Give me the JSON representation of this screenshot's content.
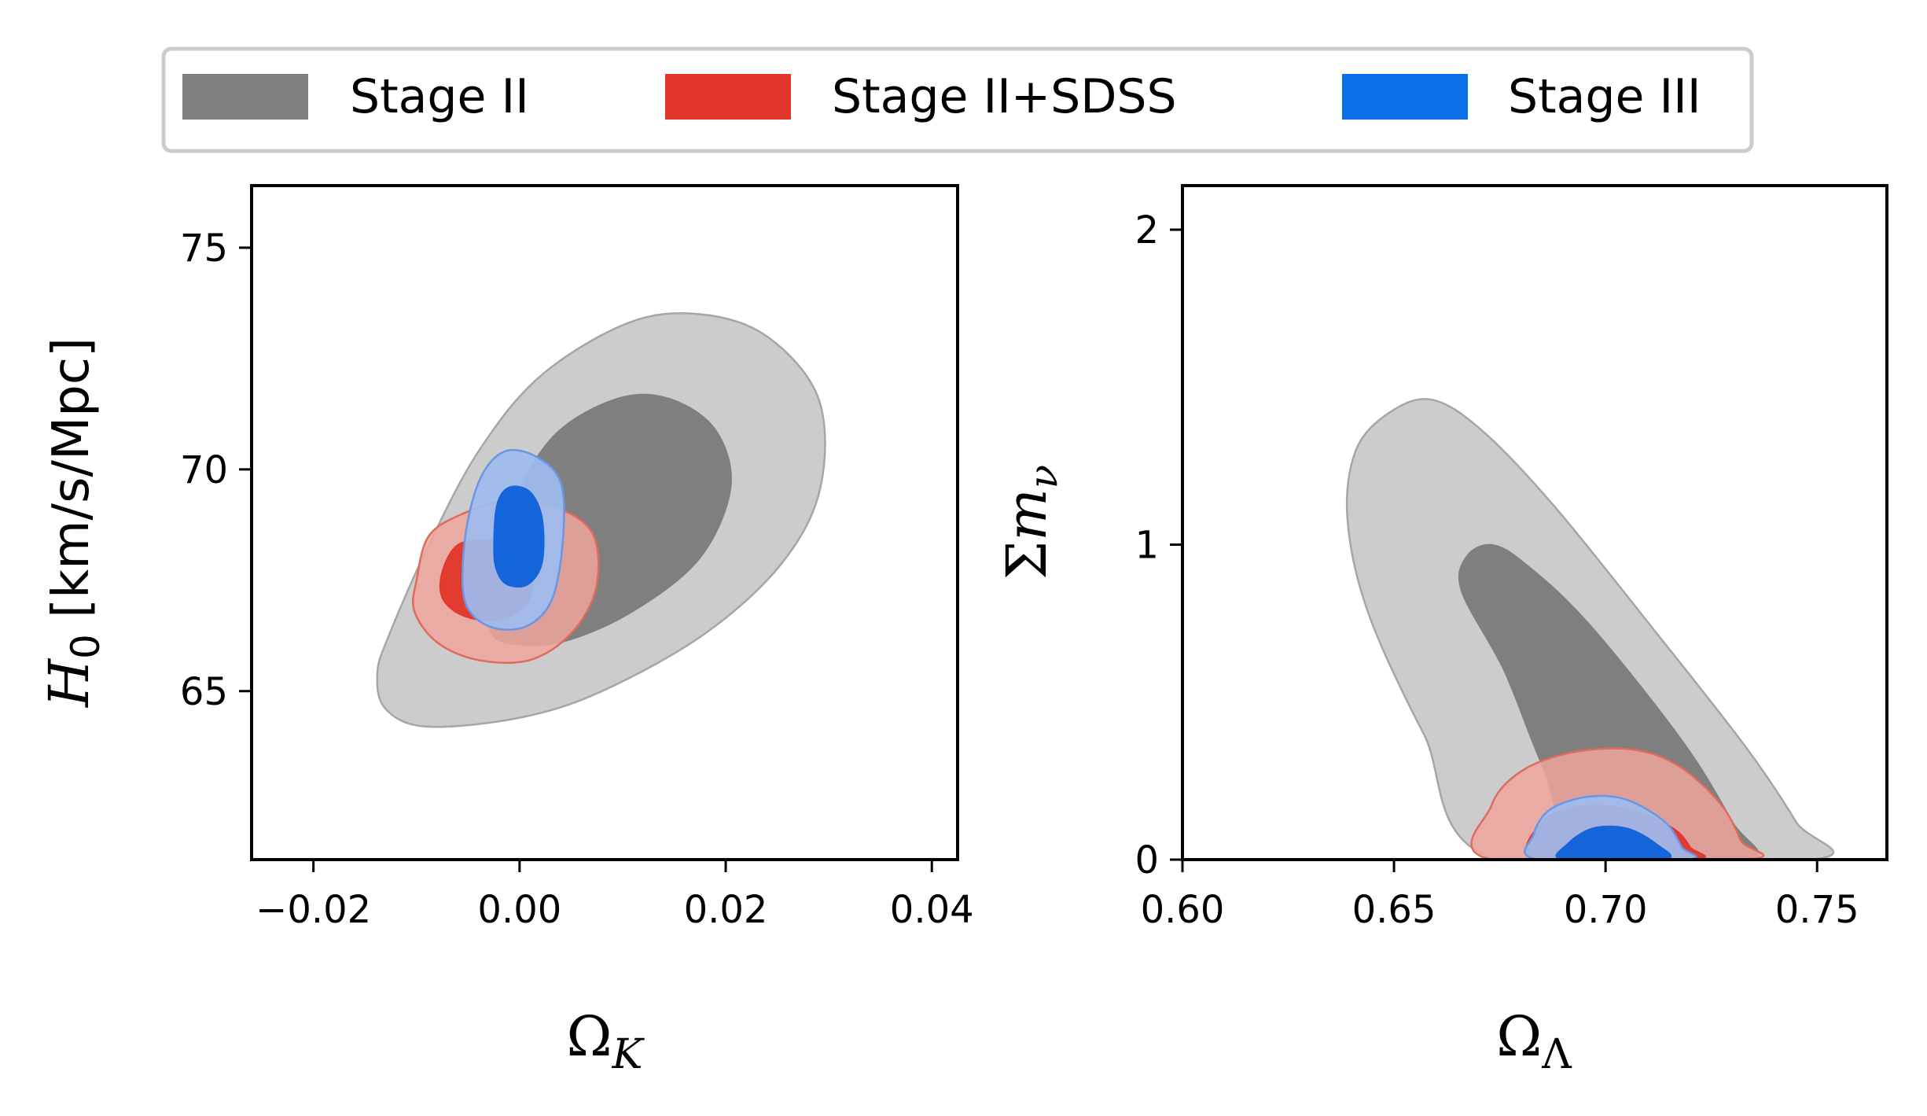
{
  "legend": {
    "entries": [
      {
        "label": "Stage II",
        "color": "#7f7f7f"
      },
      {
        "label": "Stage II+SDSS",
        "color": "#e2362b"
      },
      {
        "label": "Stage III",
        "color": "#0a6ee8"
      }
    ],
    "placement": "top-center"
  },
  "chart_data": [
    {
      "type": "contour",
      "xlabel": "Ω_K",
      "ylabel": "H_0 [km/s/Mpc]",
      "xlim": [
        -0.026,
        0.0425
      ],
      "ylim": [
        61.2,
        76.4
      ],
      "xticks": [
        -0.02,
        0.0,
        0.02,
        0.04
      ],
      "xtick_labels": [
        "−0.02",
        "0.00",
        "0.02",
        "0.04"
      ],
      "yticks": [
        65,
        70,
        75
      ],
      "ytick_labels": [
        "65",
        "70",
        "75"
      ],
      "series": [
        {
          "name": "Stage II",
          "contours": [
            {
              "level": "outer",
              "points": [
                [
                  -0.0126,
                  66.3
                ],
                [
                  -0.0088,
                  68.3
                ],
                [
                  -0.004,
                  70.4
                ],
                [
                  0.002,
                  72.1
                ],
                [
                  0.0105,
                  73.3
                ],
                [
                  0.0175,
                  73.5
                ],
                [
                  0.024,
                  73.0
                ],
                [
                  0.029,
                  71.6
                ],
                [
                  0.0292,
                  69.6
                ],
                [
                  0.0255,
                  67.9
                ],
                [
                  0.018,
                  66.3
                ],
                [
                  0.008,
                  65.0
                ],
                [
                  0.0,
                  64.4
                ],
                [
                  -0.009,
                  64.2
                ],
                [
                  -0.013,
                  64.6
                ],
                [
                  -0.0138,
                  65.4
                ]
              ]
            },
            {
              "level": "inner",
              "points": [
                [
                  -0.003,
                  67.3
                ],
                [
                  -0.0005,
                  69.3
                ],
                [
                  0.0035,
                  70.8
                ],
                [
                  0.0095,
                  71.6
                ],
                [
                  0.0145,
                  71.6
                ],
                [
                  0.019,
                  70.9
                ],
                [
                  0.0205,
                  69.6
                ],
                [
                  0.0175,
                  68.0
                ],
                [
                  0.011,
                  66.8
                ],
                [
                  0.004,
                  66.1
                ],
                [
                  -0.0015,
                  66.1
                ],
                [
                  -0.003,
                  66.5
                ]
              ]
            }
          ]
        },
        {
          "name": "Stage II+SDSS",
          "contours": [
            {
              "level": "outer",
              "points": [
                [
                  -0.01,
                  67.5
                ],
                [
                  -0.0088,
                  68.5
                ],
                [
                  -0.0055,
                  69.0
                ],
                [
                  -0.001,
                  69.3
                ],
                [
                  0.004,
                  69.1
                ],
                [
                  0.0072,
                  68.5
                ],
                [
                  0.0074,
                  67.3
                ],
                [
                  0.005,
                  66.3
                ],
                [
                  0.001,
                  65.7
                ],
                [
                  -0.004,
                  65.7
                ],
                [
                  -0.008,
                  66.1
                ],
                [
                  -0.0102,
                  66.8
                ]
              ]
            },
            {
              "level": "inner",
              "points": [
                [
                  -0.0075,
                  67.7
                ],
                [
                  -0.006,
                  68.3
                ],
                [
                  -0.003,
                  68.4
                ],
                [
                  0.0,
                  68.3
                ],
                [
                  0.0012,
                  67.7
                ],
                [
                  0.0008,
                  67.0
                ],
                [
                  -0.002,
                  66.6
                ],
                [
                  -0.0055,
                  66.7
                ],
                [
                  -0.0075,
                  67.1
                ]
              ]
            }
          ]
        },
        {
          "name": "Stage III",
          "contours": [
            {
              "level": "outer",
              "points": [
                [
                  -0.0055,
                  67.3
                ],
                [
                  -0.0052,
                  68.6
                ],
                [
                  -0.0038,
                  69.8
                ],
                [
                  -0.0015,
                  70.4
                ],
                [
                  0.0015,
                  70.3
                ],
                [
                  0.004,
                  69.7
                ],
                [
                  0.0042,
                  68.4
                ],
                [
                  0.0032,
                  67.1
                ],
                [
                  0.001,
                  66.5
                ],
                [
                  -0.002,
                  66.4
                ],
                [
                  -0.0045,
                  66.7
                ]
              ]
            },
            {
              "level": "inner",
              "points": [
                [
                  -0.0025,
                  68.2
                ],
                [
                  -0.0022,
                  69.2
                ],
                [
                  -0.001,
                  69.6
                ],
                [
                  0.001,
                  69.5
                ],
                [
                  0.0022,
                  68.9
                ],
                [
                  0.0022,
                  67.9
                ],
                [
                  0.0008,
                  67.4
                ],
                [
                  -0.0012,
                  67.4
                ],
                [
                  -0.0022,
                  67.7
                ]
              ]
            }
          ]
        }
      ]
    },
    {
      "type": "contour",
      "xlabel": "Ω_Λ",
      "ylabel": "Σm_ν",
      "xlim": [
        0.6,
        0.7665
      ],
      "ylim": [
        0,
        2.14
      ],
      "xticks": [
        0.6,
        0.65,
        0.7,
        0.75
      ],
      "xtick_labels": [
        "0.60",
        "0.65",
        "0.70",
        "0.75"
      ],
      "yticks": [
        0,
        1,
        2
      ],
      "ytick_labels": [
        "0",
        "1",
        "2"
      ],
      "series": [
        {
          "name": "Stage II",
          "contours": [
            {
              "level": "outer",
              "points": [
                [
                  0.674,
                  0.0
                ],
                [
                  0.657,
                  0.4
                ],
                [
                  0.644,
                  0.78
                ],
                [
                  0.639,
                  1.08
                ],
                [
                  0.641,
                  1.3
                ],
                [
                  0.649,
                  1.42
                ],
                [
                  0.659,
                  1.46
                ],
                [
                  0.671,
                  1.36
                ],
                [
                  0.688,
                  1.12
                ],
                [
                  0.712,
                  0.72
                ],
                [
                  0.733,
                  0.36
                ],
                [
                  0.745,
                  0.12
                ],
                [
                  0.749,
                  0.0
                ]
              ]
            },
            {
              "level": "inner",
              "points": [
                [
                  0.696,
                  0.0
                ],
                [
                  0.685,
                  0.3
                ],
                [
                  0.676,
                  0.6
                ],
                [
                  0.666,
                  0.85
                ],
                [
                  0.667,
                  0.96
                ],
                [
                  0.673,
                  1.0
                ],
                [
                  0.681,
                  0.94
                ],
                [
                  0.696,
                  0.75
                ],
                [
                  0.718,
                  0.38
                ],
                [
                  0.73,
                  0.12
                ],
                [
                  0.734,
                  0.0
                ]
              ]
            }
          ]
        },
        {
          "name": "Stage II+SDSS",
          "contours": [
            {
              "level": "outer",
              "points": [
                [
                  0.673,
                  0.0
                ],
                [
                  0.673,
                  0.17
                ],
                [
                  0.68,
                  0.28
                ],
                [
                  0.692,
                  0.34
                ],
                [
                  0.706,
                  0.35
                ],
                [
                  0.717,
                  0.3
                ],
                [
                  0.727,
                  0.18
                ],
                [
                  0.732,
                  0.06
                ],
                [
                  0.733,
                  0.0
                ]
              ]
            },
            {
              "level": "inner",
              "points": [
                [
                  0.684,
                  0.0
                ],
                [
                  0.685,
                  0.12
                ],
                [
                  0.694,
                  0.17
                ],
                [
                  0.706,
                  0.16
                ],
                [
                  0.716,
                  0.1
                ],
                [
                  0.72,
                  0.04
                ],
                [
                  0.721,
                  0.0
                ]
              ]
            }
          ]
        },
        {
          "name": "Stage III",
          "contours": [
            {
              "level": "outer",
              "points": [
                [
                  0.684,
                  0.0
                ],
                [
                  0.683,
                  0.08
                ],
                [
                  0.687,
                  0.16
                ],
                [
                  0.696,
                  0.2
                ],
                [
                  0.705,
                  0.19
                ],
                [
                  0.714,
                  0.12
                ],
                [
                  0.718,
                  0.04
                ],
                [
                  0.719,
                  0.0
                ]
              ]
            },
            {
              "level": "inner",
              "points": [
                [
                  0.69,
                  0.0
                ],
                [
                  0.691,
                  0.05
                ],
                [
                  0.697,
                  0.1
                ],
                [
                  0.705,
                  0.1
                ],
                [
                  0.712,
                  0.05
                ],
                [
                  0.714,
                  0.0
                ]
              ]
            }
          ]
        }
      ]
    }
  ]
}
